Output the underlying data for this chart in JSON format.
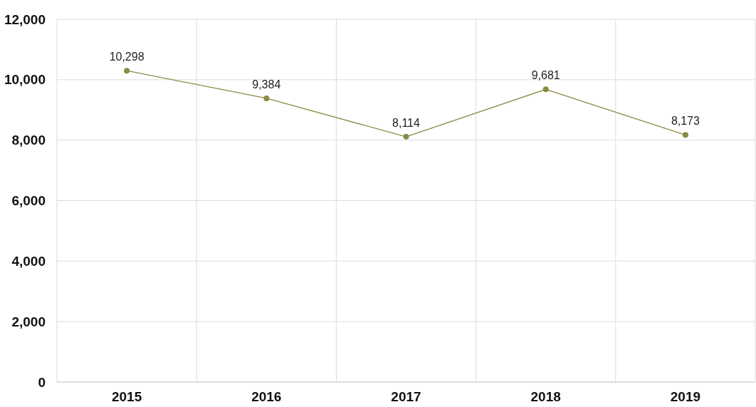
{
  "chart_data": {
    "type": "line",
    "categories": [
      "2015",
      "2016",
      "2017",
      "2018",
      "2019"
    ],
    "series": [
      {
        "color": "#8b8a45",
        "values": [
          10298,
          9384,
          8114,
          9681,
          8173
        ],
        "value_labels": [
          "10,298",
          "9,384",
          "8,114",
          "9,681",
          "8,173"
        ]
      }
    ],
    "ylim": [
      0,
      12000
    ],
    "yticks": [
      {
        "value": 0,
        "label": "0"
      },
      {
        "value": 2000,
        "label": "2,000"
      },
      {
        "value": 4000,
        "label": "4,000"
      },
      {
        "value": 6000,
        "label": "6,000"
      },
      {
        "value": 8000,
        "label": "8,000"
      },
      {
        "value": 10000,
        "label": "10,000"
      },
      {
        "value": 12000,
        "label": "12,000"
      }
    ],
    "grid": true,
    "marker": "circle",
    "line_style": "solid"
  }
}
